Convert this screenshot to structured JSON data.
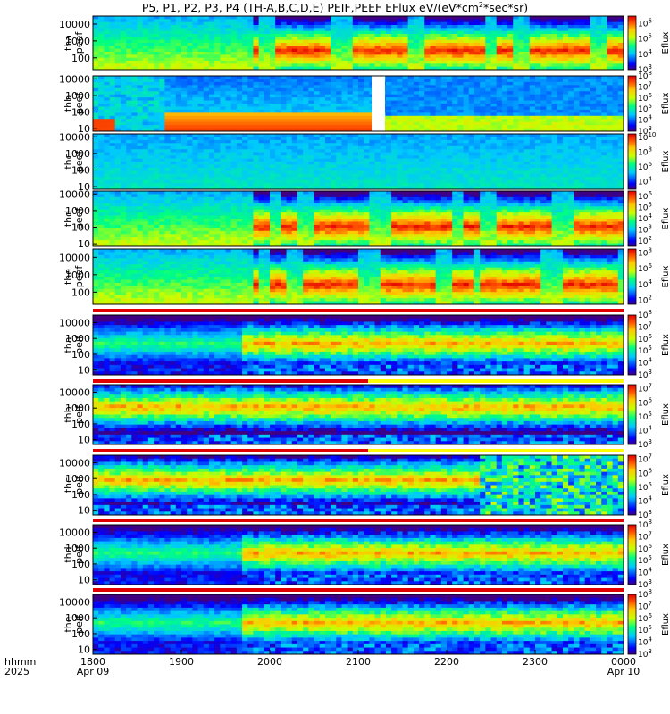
{
  "title": {
    "text": "P5, P1, P2, P3, P4 (TH-A,B,C,D,E) PEIF,PEEF EFlux eV/(eV*cm",
    "sup": "2",
    "tail": "*sec*sr)"
  },
  "time_axis": {
    "row1_label": "hhmm",
    "row2_label": "2025",
    "ticks": [
      {
        "time": "1800",
        "date": "Apr 09"
      },
      {
        "time": "1900",
        "date": ""
      },
      {
        "time": "2000",
        "date": ""
      },
      {
        "time": "2100",
        "date": ""
      },
      {
        "time": "2200",
        "date": ""
      },
      {
        "time": "2300",
        "date": ""
      },
      {
        "time": "0000",
        "date": "Apr 10"
      }
    ]
  },
  "colorbar_label": "Eflux",
  "chart_data": {
    "type": "heatmap",
    "x_range": [
      "2025-04-09 18:00",
      "2025-04-10 00:00"
    ],
    "y_scale": "log",
    "panels": [
      {
        "label": [
          "tha",
          "peef"
        ],
        "yticks": [
          "10000",
          "1000",
          "100"
        ],
        "ylim": [
          20,
          30000
        ],
        "cbar_ticks": [
          "10",
          "10",
          "10",
          "10"
        ],
        "cbar_exps": [
          "6",
          "5",
          "4",
          "3"
        ],
        "cbar_range": [
          3,
          6.5
        ]
      },
      {
        "label": [
          "thb",
          "peef"
        ],
        "yticks": [
          "10000",
          "1000",
          "100",
          "10"
        ],
        "ylim": [
          7,
          15000
        ],
        "cbar_ticks": [
          "10",
          "10",
          "10",
          "10",
          "10",
          "10"
        ],
        "cbar_exps": [
          "8",
          "7",
          "6",
          "5",
          "4",
          "3"
        ],
        "cbar_range": [
          3,
          8
        ]
      },
      {
        "label": [
          "thc",
          "peef"
        ],
        "yticks": [
          "10000",
          "1000",
          "100",
          "10"
        ],
        "ylim": [
          7,
          15000
        ],
        "cbar_ticks": [
          "10",
          "10",
          "10",
          "10"
        ],
        "cbar_exps": [
          "10",
          "8",
          "6",
          "4"
        ],
        "cbar_range": [
          3,
          10.5
        ]
      },
      {
        "label": [
          "thd",
          "peef"
        ],
        "yticks": [
          "10000",
          "1000",
          "100",
          "10"
        ],
        "ylim": [
          7,
          15000
        ],
        "cbar_ticks": [
          "10",
          "10",
          "10",
          "10",
          "10"
        ],
        "cbar_exps": [
          "6",
          "5",
          "4",
          "3",
          "2"
        ],
        "cbar_range": [
          1.5,
          6.5
        ]
      },
      {
        "label": [
          "the",
          "peef"
        ],
        "yticks": [
          "10000",
          "1000",
          "100"
        ],
        "ylim": [
          20,
          30000
        ],
        "cbar_ticks": [
          "10",
          "10",
          "10",
          "10"
        ],
        "cbar_exps": [
          "8",
          "6",
          "4",
          "2"
        ],
        "cbar_range": [
          1.5,
          8.5
        ]
      },
      {
        "label": [
          "tha",
          "peif"
        ],
        "yticks": [
          "10000",
          "1000",
          "100",
          "10"
        ],
        "ylim": [
          5,
          30000
        ],
        "cbar_ticks": [
          "10",
          "10",
          "10",
          "10",
          "10",
          "10"
        ],
        "cbar_exps": [
          "8",
          "7",
          "6",
          "5",
          "4",
          "3"
        ],
        "cbar_range": [
          3,
          8
        ]
      },
      {
        "label": [
          "thb",
          "peif"
        ],
        "yticks": [
          "10000",
          "1000",
          "100",
          "10"
        ],
        "ylim": [
          5,
          30000
        ],
        "cbar_ticks": [
          "10",
          "10",
          "10",
          "10",
          "10"
        ],
        "cbar_exps": [
          "7",
          "6",
          "5",
          "4",
          "3"
        ],
        "cbar_range": [
          3,
          7.3
        ]
      },
      {
        "label": [
          "thc",
          "peif"
        ],
        "yticks": [
          "10000",
          "1000",
          "100",
          "10"
        ],
        "ylim": [
          5,
          30000
        ],
        "cbar_ticks": [
          "10",
          "10",
          "10",
          "10",
          "10"
        ],
        "cbar_exps": [
          "7",
          "6",
          "5",
          "4",
          "3"
        ],
        "cbar_range": [
          3,
          7.3
        ]
      },
      {
        "label": [
          "thd",
          "peif"
        ],
        "yticks": [
          "10000",
          "1000",
          "100",
          "10"
        ],
        "ylim": [
          5,
          30000
        ],
        "cbar_ticks": [
          "10",
          "10",
          "10",
          "10",
          "10",
          "10"
        ],
        "cbar_exps": [
          "8",
          "7",
          "6",
          "5",
          "4",
          "3"
        ],
        "cbar_range": [
          3,
          8
        ]
      },
      {
        "label": [
          "the",
          "peif"
        ],
        "yticks": [
          "10000",
          "1000",
          "100",
          "10"
        ],
        "ylim": [
          5,
          30000
        ],
        "cbar_ticks": [
          "10",
          "10",
          "10",
          "10",
          "10",
          "10"
        ],
        "cbar_exps": [
          "8",
          "7",
          "6",
          "5",
          "4",
          "3"
        ],
        "cbar_range": [
          3,
          8
        ]
      }
    ]
  }
}
